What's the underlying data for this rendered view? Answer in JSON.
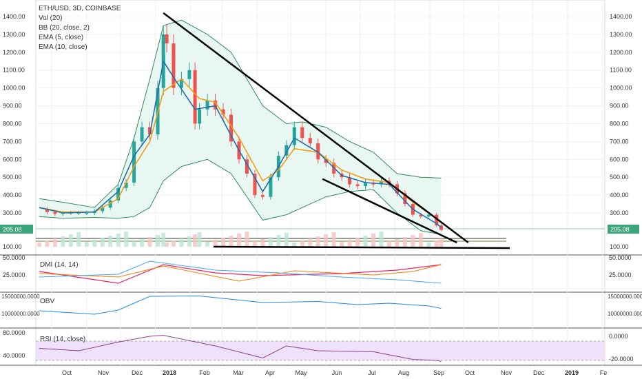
{
  "header": {
    "symbol": "ETH/USD, 3D, COINBASE",
    "indicators": [
      "Vol (20)",
      "BB (20, close, 2)",
      "EMA (5, close)",
      "EMA (10, close)"
    ]
  },
  "panes": {
    "dmi_label": "DMI (14, 14)",
    "obv_label": "OBV",
    "rsi_label": "RSI (14, close)"
  },
  "price_axis": {
    "ticks": [
      "1400.00",
      "1300.00",
      "1200.00",
      "1100.00",
      "1000.00",
      "900.00",
      "800.00",
      "700.00",
      "600.00",
      "500.00",
      "400.00",
      "300.00",
      "100.00"
    ],
    "last_price": "205.08"
  },
  "dmi_axis": {
    "left": [
      "50.0000",
      "25.0000"
    ],
    "right": [
      "50.0000",
      "25.0000"
    ]
  },
  "obv_axis": {
    "left": [
      "15000000.0000",
      "10000000.0000"
    ],
    "right": [
      "15000000.0000",
      "10000000.0000"
    ]
  },
  "rsi_axis": {
    "left": [
      "80.0000",
      "40.0000"
    ],
    "right": [
      "0.0000",
      "-20.0000"
    ]
  },
  "time_axis": [
    "Oct",
    "Nov",
    "Dec",
    "2018",
    "Feb",
    "Mar",
    "Apr",
    "May",
    "Jun",
    "Jul",
    "Aug",
    "Sep",
    "Oct",
    "Nov",
    "Dec",
    "2019",
    "Fe"
  ],
  "colors": {
    "up": "#26a69a",
    "down": "#ef5350",
    "ema5": "#1e6fa8",
    "ema10": "#f39c12",
    "bb": "#2e8b57",
    "bbfill": "#e9f7f3",
    "rsi": "#8e3a8e",
    "rsiband": "#f0e1fb",
    "diplus": "#f57c00",
    "diminus": "#42a5f5",
    "adx": "#e91e63",
    "obv": "#1e88e5"
  },
  "chart_data": {
    "type": "line",
    "title": "ETH/USD, 3D, COINBASE",
    "price_series": [
      [
        "2017-09-20",
        320
      ],
      [
        "2017-09-27",
        305
      ],
      [
        "2017-10-04",
        295
      ],
      [
        "2017-10-11",
        300
      ],
      [
        "2017-10-18",
        300
      ],
      [
        "2017-10-25",
        300
      ],
      [
        "2017-11-01",
        300
      ],
      [
        "2017-11-08",
        310
      ],
      [
        "2017-11-15",
        330
      ],
      [
        "2017-11-22",
        370
      ],
      [
        "2017-11-29",
        440
      ],
      [
        "2017-12-06",
        470
      ],
      [
        "2017-12-13",
        700
      ],
      [
        "2017-12-20",
        780
      ],
      [
        "2017-12-27",
        740
      ],
      [
        "2018-01-03",
        1000
      ],
      [
        "2018-01-08",
        1300
      ],
      [
        "2018-01-11",
        1250
      ],
      [
        "2018-01-17",
        1000
      ],
      [
        "2018-01-24",
        1050
      ],
      [
        "2018-01-31",
        1100
      ],
      [
        "2018-02-05",
        800
      ],
      [
        "2018-02-09",
        880
      ],
      [
        "2018-02-16",
        930
      ],
      [
        "2018-02-23",
        880
      ],
      [
        "2018-03-02",
        850
      ],
      [
        "2018-03-09",
        700
      ],
      [
        "2018-03-16",
        600
      ],
      [
        "2018-03-23",
        520
      ],
      [
        "2018-03-30",
        400
      ],
      [
        "2018-04-06",
        390
      ],
      [
        "2018-04-13",
        500
      ],
      [
        "2018-04-20",
        620
      ],
      [
        "2018-04-27",
        680
      ],
      [
        "2018-05-04",
        780
      ],
      [
        "2018-05-11",
        720
      ],
      [
        "2018-05-18",
        690
      ],
      [
        "2018-05-25",
        600
      ],
      [
        "2018-06-01",
        580
      ],
      [
        "2018-06-08",
        520
      ],
      [
        "2018-06-15",
        500
      ],
      [
        "2018-06-22",
        460
      ],
      [
        "2018-06-29",
        450
      ],
      [
        "2018-07-06",
        470
      ],
      [
        "2018-07-13",
        460
      ],
      [
        "2018-07-20",
        480
      ],
      [
        "2018-07-27",
        460
      ],
      [
        "2018-08-03",
        410
      ],
      [
        "2018-08-10",
        350
      ],
      [
        "2018-08-17",
        290
      ],
      [
        "2018-08-24",
        280
      ],
      [
        "2018-08-31",
        290
      ],
      [
        "2018-09-07",
        230
      ],
      [
        "2018-09-11",
        205
      ]
    ],
    "ema5": [
      [
        "2017-09-20",
        330
      ],
      [
        "2017-10-11",
        300
      ],
      [
        "2017-11-08",
        305
      ],
      [
        "2017-11-29",
        420
      ],
      [
        "2017-12-13",
        620
      ],
      [
        "2017-12-27",
        740
      ],
      [
        "2018-01-08",
        1150
      ],
      [
        "2018-01-17",
        1060
      ],
      [
        "2018-02-05",
        880
      ],
      [
        "2018-02-23",
        900
      ],
      [
        "2018-03-16",
        650
      ],
      [
        "2018-04-06",
        420
      ],
      [
        "2018-04-20",
        560
      ],
      [
        "2018-05-04",
        720
      ],
      [
        "2018-05-25",
        640
      ],
      [
        "2018-06-15",
        510
      ],
      [
        "2018-07-06",
        470
      ],
      [
        "2018-07-27",
        460
      ],
      [
        "2018-08-17",
        320
      ],
      [
        "2018-09-07",
        240
      ],
      [
        "2018-09-11",
        218
      ]
    ],
    "ema10": [
      [
        "2017-09-20",
        330
      ],
      [
        "2017-10-11",
        305
      ],
      [
        "2017-11-08",
        305
      ],
      [
        "2017-11-29",
        380
      ],
      [
        "2017-12-13",
        560
      ],
      [
        "2017-12-27",
        700
      ],
      [
        "2018-01-08",
        980
      ],
      [
        "2018-01-24",
        1050
      ],
      [
        "2018-02-09",
        940
      ],
      [
        "2018-02-23",
        920
      ],
      [
        "2018-03-16",
        720
      ],
      [
        "2018-04-06",
        480
      ],
      [
        "2018-04-20",
        540
      ],
      [
        "2018-05-04",
        660
      ],
      [
        "2018-05-25",
        640
      ],
      [
        "2018-06-15",
        540
      ],
      [
        "2018-07-06",
        490
      ],
      [
        "2018-07-27",
        470
      ],
      [
        "2018-08-17",
        360
      ],
      [
        "2018-09-07",
        270
      ],
      [
        "2018-09-11",
        245
      ]
    ],
    "bb_upper": [
      [
        "2017-09-20",
        380
      ],
      [
        "2017-10-11",
        360
      ],
      [
        "2017-11-08",
        330
      ],
      [
        "2017-11-29",
        460
      ],
      [
        "2017-12-13",
        720
      ],
      [
        "2017-12-27",
        1050
      ],
      [
        "2018-01-08",
        1350
      ],
      [
        "2018-01-24",
        1380
      ],
      [
        "2018-02-16",
        1300
      ],
      [
        "2018-03-09",
        1200
      ],
      [
        "2018-04-06",
        900
      ],
      [
        "2018-04-27",
        800
      ],
      [
        "2018-05-11",
        810
      ],
      [
        "2018-06-01",
        780
      ],
      [
        "2018-06-22",
        700
      ],
      [
        "2018-07-13",
        640
      ],
      [
        "2018-08-03",
        520
      ],
      [
        "2018-08-24",
        500
      ],
      [
        "2018-09-11",
        495
      ]
    ],
    "bb_lower": [
      [
        "2017-09-20",
        280
      ],
      [
        "2017-10-11",
        270
      ],
      [
        "2017-11-08",
        275
      ],
      [
        "2017-11-29",
        270
      ],
      [
        "2017-12-13",
        280
      ],
      [
        "2017-12-27",
        330
      ],
      [
        "2018-01-08",
        480
      ],
      [
        "2018-01-24",
        560
      ],
      [
        "2018-02-16",
        600
      ],
      [
        "2018-03-09",
        520
      ],
      [
        "2018-04-06",
        260
      ],
      [
        "2018-04-27",
        290
      ],
      [
        "2018-05-11",
        330
      ],
      [
        "2018-06-01",
        390
      ],
      [
        "2018-06-22",
        420
      ],
      [
        "2018-07-13",
        430
      ],
      [
        "2018-08-03",
        300
      ],
      [
        "2018-08-24",
        200
      ],
      [
        "2018-09-11",
        180
      ]
    ],
    "trendlines": [
      {
        "from": [
          "2018-01-08",
          1420
        ],
        "to": [
          "2018-10-05",
          130
        ]
      },
      {
        "from": [
          "2018-05-29",
          490
        ],
        "to": [
          "2018-09-25",
          130
        ]
      },
      {
        "from": [
          "2017-09-20",
          120
        ],
        "to": [
          "2018-11-01",
          120
        ]
      }
    ],
    "dmi_adx": [
      [
        "2017-09-20",
        30
      ],
      [
        "2017-11-29",
        13
      ],
      [
        "2018-01-08",
        40
      ],
      [
        "2018-02-23",
        28
      ],
      [
        "2018-04-06",
        24
      ],
      [
        "2018-06-15",
        27
      ],
      [
        "2018-08-03",
        32
      ],
      [
        "2018-09-11",
        40
      ]
    ],
    "dmi_plus": [
      [
        "2017-09-20",
        27
      ],
      [
        "2017-11-29",
        22
      ],
      [
        "2018-01-08",
        38
      ],
      [
        "2018-03-16",
        16
      ],
      [
        "2018-05-04",
        31
      ],
      [
        "2018-07-13",
        25
      ],
      [
        "2018-08-17",
        30
      ],
      [
        "2018-09-11",
        40
      ]
    ],
    "dmi_minus": [
      [
        "2017-09-20",
        22
      ],
      [
        "2017-11-29",
        26
      ],
      [
        "2017-12-27",
        45
      ],
      [
        "2018-02-23",
        32
      ],
      [
        "2018-04-20",
        28
      ],
      [
        "2018-06-15",
        22
      ],
      [
        "2018-08-03",
        18
      ],
      [
        "2018-09-11",
        13
      ]
    ],
    "obv": [
      [
        "2017-09-20",
        10800000
      ],
      [
        "2017-11-08",
        9800000
      ],
      [
        "2017-11-29",
        11000000
      ],
      [
        "2017-12-27",
        15000000
      ],
      [
        "2018-02-09",
        15100000
      ],
      [
        "2018-04-06",
        13200000
      ],
      [
        "2018-05-25",
        13500000
      ],
      [
        "2018-06-29",
        12600000
      ],
      [
        "2018-07-27",
        13000000
      ],
      [
        "2018-08-31",
        12200000
      ],
      [
        "2018-09-11",
        11500000
      ]
    ],
    "rsi": [
      [
        "2017-09-20",
        55
      ],
      [
        "2017-10-25",
        50
      ],
      [
        "2017-11-29",
        68
      ],
      [
        "2017-12-27",
        80
      ],
      [
        "2018-01-08",
        82
      ],
      [
        "2018-02-23",
        60
      ],
      [
        "2018-04-06",
        35
      ],
      [
        "2018-04-27",
        60
      ],
      [
        "2018-05-25",
        50
      ],
      [
        "2018-07-13",
        48
      ],
      [
        "2018-08-17",
        32
      ],
      [
        "2018-09-07",
        30
      ],
      [
        "2018-09-11",
        28
      ]
    ],
    "rsi_band": [
      30,
      70
    ]
  }
}
